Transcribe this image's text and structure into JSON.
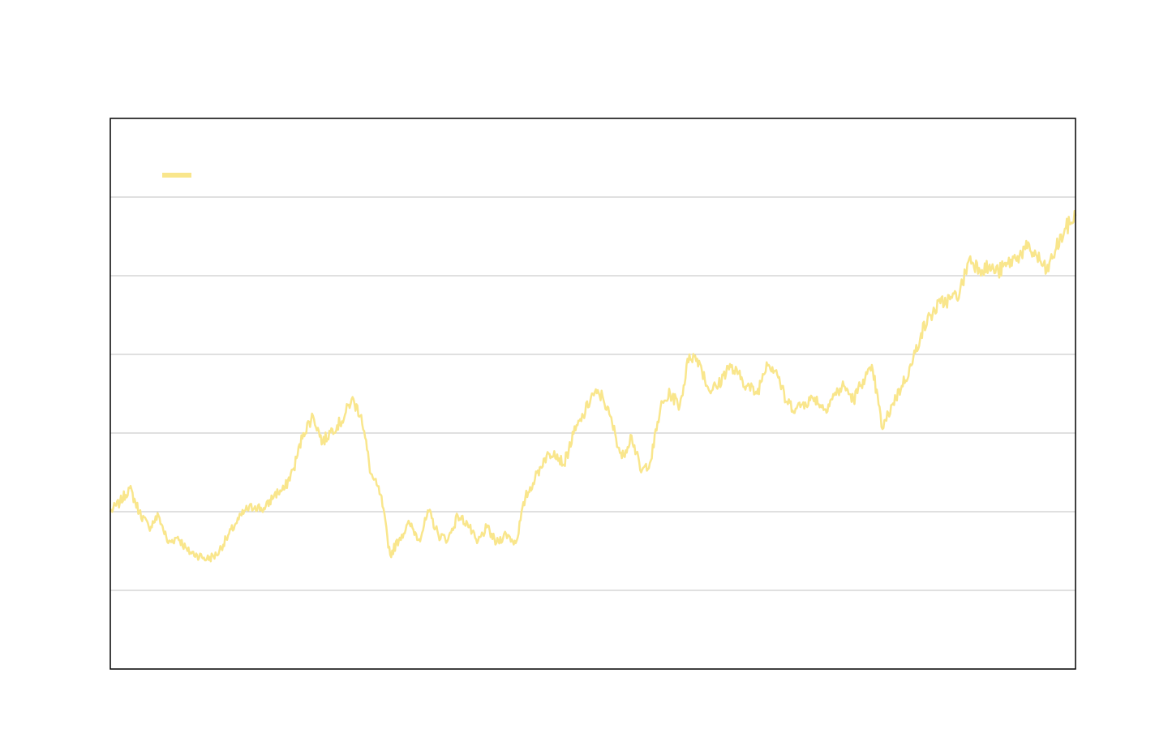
{
  "chart_data": {
    "type": "line",
    "title": "",
    "xlabel": "",
    "ylabel": "",
    "grid": true,
    "legend_position": "top-left",
    "ylim": [
      0,
      700
    ],
    "yticks": [
      0,
      100,
      200,
      300,
      400,
      500,
      600,
      700
    ],
    "xlim": [
      0,
      1000
    ],
    "colors": {
      "line": "#f9e68c",
      "grid": "#c0c0c0",
      "frame": "#000000",
      "background": "#ffffff"
    },
    "series": [
      {
        "name": "",
        "x": [
          0,
          10,
          20,
          30,
          40,
          50,
          60,
          70,
          80,
          90,
          100,
          110,
          120,
          130,
          140,
          150,
          160,
          170,
          180,
          190,
          200,
          210,
          220,
          230,
          240,
          250,
          260,
          270,
          280,
          290,
          300,
          310,
          320,
          330,
          340,
          350,
          360,
          370,
          380,
          390,
          400,
          410,
          420,
          430,
          440,
          450,
          460,
          470,
          480,
          490,
          500,
          510,
          520,
          530,
          540,
          550,
          560,
          570,
          580,
          590,
          600,
          610,
          620,
          630,
          640,
          650,
          660,
          670,
          680,
          690,
          700,
          710,
          720,
          730,
          740,
          750,
          760,
          770,
          780,
          790,
          800,
          810,
          820,
          830,
          840,
          850,
          860,
          870,
          880,
          890,
          900,
          910,
          920,
          930,
          940,
          950,
          960,
          970,
          980,
          990,
          1000
        ],
        "y": [
          200,
          212,
          230,
          200,
          180,
          195,
          160,
          168,
          150,
          145,
          140,
          145,
          165,
          185,
          202,
          207,
          203,
          222,
          228,
          255,
          300,
          322,
          288,
          305,
          315,
          343,
          323,
          248,
          222,
          145,
          167,
          185,
          165,
          200,
          170,
          165,
          195,
          185,
          160,
          180,
          160,
          172,
          160,
          218,
          242,
          268,
          277,
          260,
          299,
          322,
          350,
          347,
          312,
          268,
          297,
          250,
          265,
          332,
          350,
          335,
          400,
          392,
          355,
          360,
          385,
          375,
          360,
          350,
          390,
          380,
          340,
          331,
          339,
          345,
          330,
          348,
          360,
          342,
          368,
          380,
          305,
          336,
          360,
          386,
          427,
          450,
          465,
          470,
          478,
          522,
          510,
          510,
          505,
          515,
          525,
          535,
          525,
          505,
          535,
          560,
          576
        ]
      }
    ]
  }
}
